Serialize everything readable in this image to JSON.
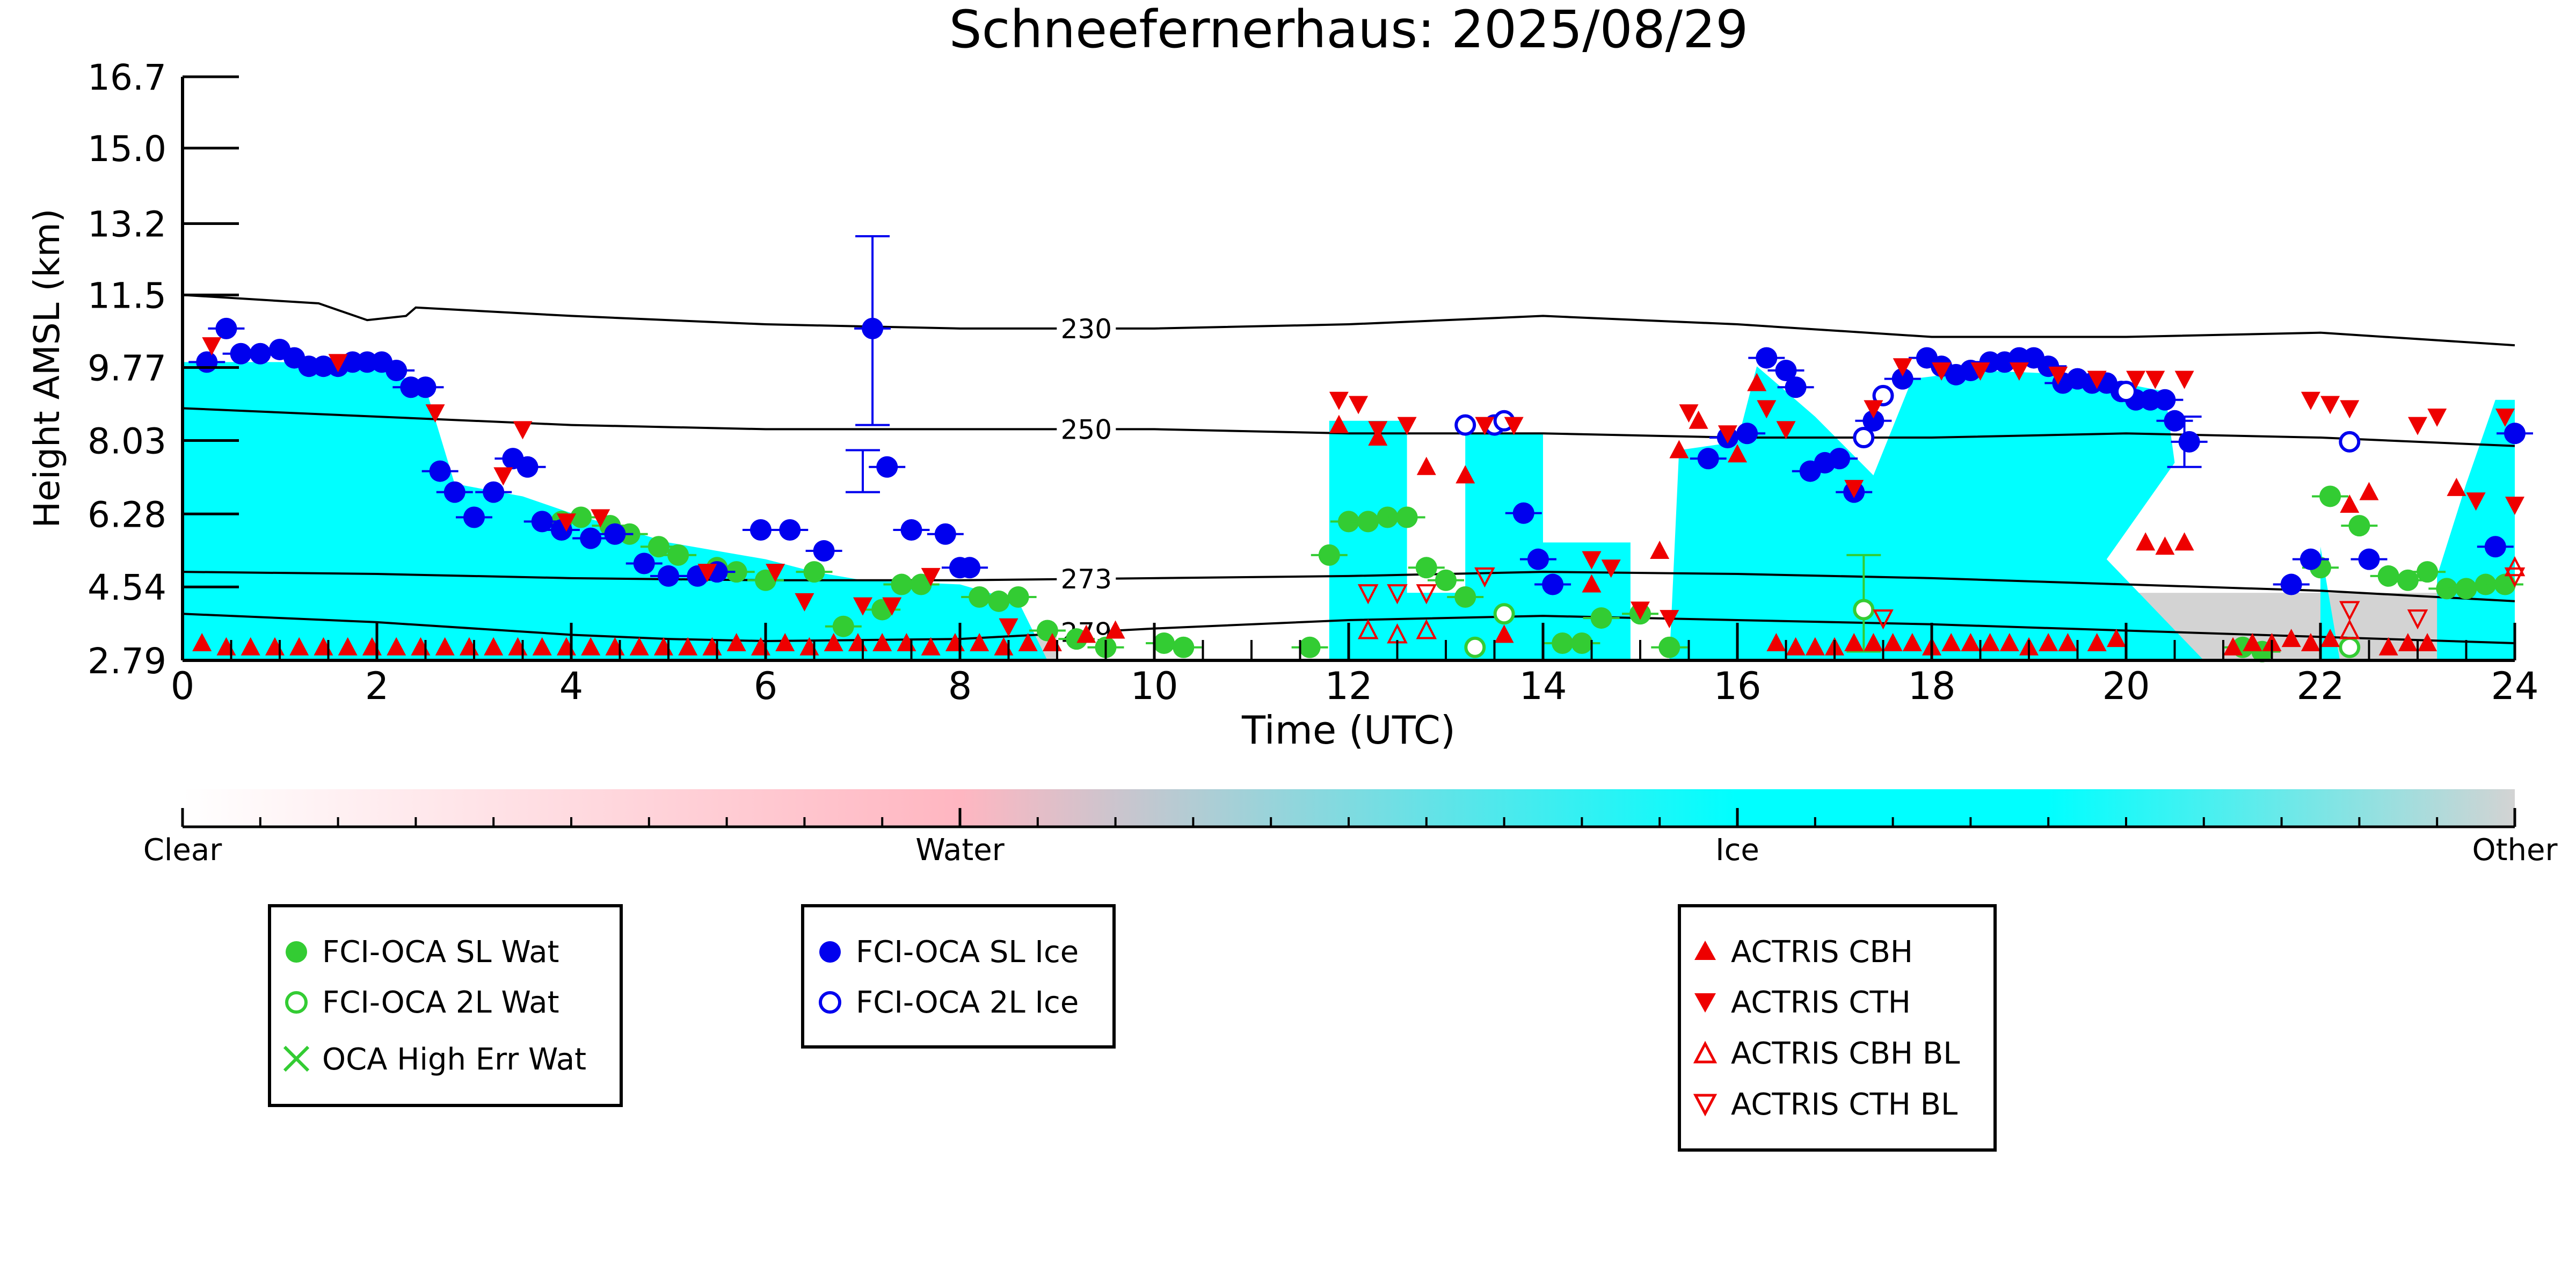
{
  "chart_data": {
    "type": "scatter",
    "title": "Schneefernerhaus: 2025/08/29",
    "xlabel": "Time (UTC)",
    "ylabel": "Height AMSL (km)",
    "xlim": [
      0,
      24
    ],
    "ylim": [
      2.79,
      16.7
    ],
    "x_ticks": [
      "0",
      "2",
      "4",
      "6",
      "8",
      "10",
      "12",
      "14",
      "16",
      "18",
      "20",
      "22",
      "24"
    ],
    "y_ticks": [
      "2.79",
      "4.54",
      "6.28",
      "8.03",
      "9.77",
      "11.5",
      "13.2",
      "15.0",
      "16.7"
    ],
    "grid": false,
    "colorbar": {
      "labels": [
        "Clear",
        "Water",
        "Ice",
        "Other"
      ],
      "colors": [
        "#ffffff",
        "#ffb6c1",
        "#00ffff",
        "#d3d3d3"
      ]
    },
    "background_classification": {
      "ice_top_km": [
        [
          0,
          9.9
        ],
        [
          1,
          9.9
        ],
        [
          2,
          9.8
        ],
        [
          2.5,
          9.3
        ],
        [
          2.8,
          7.0
        ],
        [
          3.5,
          6.7
        ],
        [
          4,
          6.3
        ],
        [
          5,
          5.6
        ],
        [
          6,
          5.2
        ],
        [
          6.5,
          4.9
        ],
        [
          7,
          4.7
        ],
        [
          8,
          4.6
        ],
        [
          8.6,
          4.2
        ],
        [
          8.9,
          2.79
        ],
        [
          11.8,
          2.79
        ],
        [
          11.8,
          8.5
        ],
        [
          12.6,
          8.5
        ],
        [
          12.6,
          4.4
        ],
        [
          13.2,
          4.4
        ],
        [
          13.2,
          8.2
        ],
        [
          14.0,
          8.2
        ],
        [
          14.0,
          5.6
        ],
        [
          14.9,
          5.6
        ],
        [
          14.9,
          2.79
        ],
        [
          15.3,
          2.79
        ],
        [
          15.4,
          7.8
        ],
        [
          16,
          8.0
        ],
        [
          16.2,
          9.8
        ],
        [
          16.8,
          8.6
        ],
        [
          17.4,
          7.2
        ],
        [
          17.8,
          9.5
        ],
        [
          18.5,
          9.7
        ],
        [
          19.5,
          9.6
        ],
        [
          20.4,
          9.2
        ],
        [
          20.5,
          7.5
        ],
        [
          19.8,
          5.2
        ],
        [
          20.8,
          2.79
        ],
        [
          22.0,
          2.79
        ],
        [
          22.0,
          5.5
        ],
        [
          22.2,
          2.79
        ],
        [
          23.2,
          2.79
        ],
        [
          23.2,
          4.8
        ],
        [
          23.5,
          7.0
        ],
        [
          23.8,
          9.0
        ],
        [
          24,
          9.0
        ]
      ],
      "other_regions": [
        [
          6.2,
          9.0,
          3.4
        ],
        [
          12.5,
          13.0,
          3.6
        ],
        [
          19.8,
          24,
          4.4
        ]
      ]
    },
    "contours": [
      {
        "label": "230",
        "label_x": 9.3,
        "x": [
          0,
          1.4,
          1.9,
          2.3,
          2.4,
          4,
          6,
          8,
          10,
          12,
          14,
          16,
          18,
          20,
          22,
          24
        ],
        "y": [
          11.5,
          11.3,
          10.9,
          11.0,
          11.2,
          11.0,
          10.8,
          10.7,
          10.7,
          10.8,
          11.0,
          10.8,
          10.5,
          10.5,
          10.6,
          10.3
        ]
      },
      {
        "label": "250",
        "label_x": 9.3,
        "x": [
          0,
          2,
          4,
          6,
          8,
          10,
          12,
          14,
          16,
          18,
          20,
          22,
          24
        ],
        "y": [
          8.8,
          8.6,
          8.4,
          8.3,
          8.3,
          8.3,
          8.2,
          8.2,
          8.1,
          8.1,
          8.2,
          8.1,
          7.9
        ]
      },
      {
        "label": "273",
        "label_x": 9.3,
        "x": [
          0,
          2,
          4,
          6,
          8,
          10,
          12,
          14,
          16,
          18,
          20,
          22,
          24
        ],
        "y": [
          4.9,
          4.85,
          4.75,
          4.7,
          4.7,
          4.75,
          4.8,
          4.9,
          4.85,
          4.75,
          4.6,
          4.45,
          4.2
        ]
      },
      {
        "label": "279",
        "label_x": 9.3,
        "x": [
          0,
          2,
          4,
          5,
          6,
          8,
          10,
          12,
          14,
          16,
          18,
          20,
          22,
          24
        ],
        "y": [
          3.9,
          3.7,
          3.4,
          3.3,
          3.25,
          3.3,
          3.55,
          3.75,
          3.85,
          3.75,
          3.65,
          3.5,
          3.35,
          3.2
        ]
      }
    ],
    "series": [
      {
        "name": "FCI-OCA SL Wat",
        "marker": "filled-circle",
        "color": "#33cc33",
        "x": [
          3.9,
          4.1,
          4.4,
          4.6,
          4.9,
          5.1,
          5.5,
          5.7,
          6.0,
          6.5,
          6.8,
          7.2,
          7.4,
          7.6,
          8.2,
          8.4,
          8.6,
          8.9,
          9.2,
          9.5,
          10.1,
          10.3,
          11.6,
          11.8,
          12.0,
          12.2,
          12.4,
          12.6,
          12.8,
          13.0,
          13.2,
          14.2,
          14.4,
          14.6,
          15.0,
          15.3,
          21.2,
          21.4,
          22.0,
          22.1,
          22.4,
          22.7,
          22.9,
          23.1,
          23.3,
          23.5,
          23.7,
          23.9
        ],
        "y": [
          6.1,
          6.2,
          6.0,
          5.8,
          5.5,
          5.3,
          5.0,
          4.9,
          4.7,
          4.9,
          3.6,
          4.0,
          4.6,
          4.6,
          4.3,
          4.2,
          4.3,
          3.5,
          3.3,
          3.1,
          3.2,
          3.1,
          3.1,
          5.3,
          6.1,
          6.1,
          6.2,
          6.2,
          5.0,
          4.7,
          4.3,
          3.2,
          3.2,
          3.8,
          3.9,
          3.1,
          3.1,
          3.0,
          5.0,
          6.7,
          6.0,
          4.8,
          4.7,
          4.9,
          4.5,
          4.5,
          4.6,
          4.6
        ]
      },
      {
        "name": "FCI-OCA 2L Wat",
        "marker": "open-circle",
        "color": "#33cc33",
        "x": [
          13.3,
          13.6,
          17.3,
          22.3
        ],
        "y": [
          3.1,
          3.9,
          4.0,
          3.1
        ]
      },
      {
        "name": "OCA High Err Wat",
        "marker": "cross",
        "color": "#33cc33",
        "x": [],
        "y": []
      },
      {
        "name": "FCI-OCA SL Ice",
        "marker": "filled-circle",
        "color": "#0000ee",
        "x": [
          0.25,
          0.45,
          0.6,
          0.8,
          1.0,
          1.15,
          1.3,
          1.45,
          1.6,
          1.75,
          1.9,
          2.05,
          2.2,
          2.35,
          2.5,
          2.65,
          2.8,
          3.0,
          3.2,
          3.4,
          3.55,
          3.7,
          3.9,
          4.2,
          4.45,
          4.75,
          5.0,
          5.3,
          5.5,
          5.95,
          6.25,
          6.6,
          7.1,
          7.25,
          7.5,
          7.85,
          8.0,
          8.1,
          13.8,
          13.95,
          14.1,
          15.7,
          15.9,
          16.1,
          16.3,
          16.5,
          16.6,
          16.75,
          16.9,
          17.05,
          17.2,
          17.4,
          17.7,
          17.95,
          18.1,
          18.25,
          18.4,
          18.6,
          18.75,
          18.9,
          19.05,
          19.2,
          19.35,
          19.5,
          19.65,
          19.8,
          19.95,
          20.1,
          20.25,
          20.4,
          20.5,
          20.65,
          21.7,
          21.9,
          22.5,
          23.8,
          24.0
        ],
        "y": [
          9.9,
          10.7,
          10.1,
          10.1,
          10.2,
          10.0,
          9.8,
          9.8,
          9.8,
          9.9,
          9.9,
          9.9,
          9.7,
          9.3,
          9.3,
          7.3,
          6.8,
          6.2,
          6.8,
          7.6,
          7.4,
          6.1,
          5.9,
          5.7,
          5.8,
          5.1,
          4.8,
          4.8,
          4.9,
          5.9,
          5.9,
          5.4,
          10.7,
          7.4,
          5.9,
          5.8,
          5.0,
          5.0,
          6.3,
          5.2,
          4.6,
          7.6,
          8.1,
          8.2,
          10.0,
          9.7,
          9.3,
          7.3,
          7.5,
          7.6,
          6.8,
          8.5,
          9.5,
          10.0,
          9.8,
          9.6,
          9.7,
          9.9,
          9.9,
          10.0,
          10.0,
          9.8,
          9.4,
          9.5,
          9.4,
          9.4,
          9.2,
          9.0,
          9.0,
          9.0,
          8.5,
          8.0,
          4.6,
          5.2,
          5.2,
          5.5,
          8.2
        ]
      },
      {
        "name": "FCI-OCA 2L Ice",
        "marker": "open-circle",
        "color": "#0000ee",
        "x": [
          13.2,
          13.5,
          13.6,
          17.3,
          17.5,
          20.0,
          22.3
        ],
        "y": [
          8.4,
          8.4,
          8.5,
          8.1,
          9.1,
          9.2,
          8.0
        ]
      },
      {
        "name": "ACTRIS CBH",
        "marker": "triangle-up",
        "color": "#ee0000",
        "x": [
          0.2,
          0.45,
          0.7,
          0.95,
          1.2,
          1.45,
          1.7,
          1.95,
          2.2,
          2.45,
          2.7,
          2.95,
          3.2,
          3.45,
          3.7,
          3.95,
          4.2,
          4.45,
          4.7,
          4.95,
          5.2,
          5.45,
          5.7,
          5.95,
          6.2,
          6.45,
          6.7,
          6.95,
          7.2,
          7.45,
          7.7,
          7.95,
          8.2,
          8.45,
          8.7,
          8.95,
          9.3,
          9.6,
          11.9,
          12.3,
          12.8,
          13.2,
          13.6,
          14.5,
          15.2,
          15.4,
          15.6,
          16.0,
          16.2,
          16.4,
          16.6,
          16.8,
          17.0,
          17.2,
          17.4,
          17.6,
          17.8,
          18.0,
          18.2,
          18.4,
          18.6,
          18.8,
          19.0,
          19.2,
          19.4,
          19.7,
          19.9,
          20.2,
          20.4,
          20.6,
          21.1,
          21.3,
          21.5,
          21.7,
          21.9,
          22.1,
          22.3,
          22.5,
          22.7,
          22.9,
          23.1,
          23.4
        ],
        "y": [
          3.2,
          3.1,
          3.1,
          3.1,
          3.1,
          3.1,
          3.1,
          3.1,
          3.1,
          3.1,
          3.1,
          3.1,
          3.1,
          3.1,
          3.1,
          3.1,
          3.1,
          3.1,
          3.1,
          3.1,
          3.1,
          3.1,
          3.2,
          3.1,
          3.2,
          3.1,
          3.2,
          3.2,
          3.2,
          3.2,
          3.1,
          3.2,
          3.2,
          3.1,
          3.2,
          3.2,
          3.4,
          3.5,
          8.4,
          8.1,
          7.4,
          7.2,
          3.4,
          4.6,
          5.4,
          7.8,
          8.5,
          7.7,
          9.4,
          3.2,
          3.1,
          3.1,
          3.1,
          3.2,
          3.2,
          3.2,
          3.2,
          3.1,
          3.2,
          3.2,
          3.2,
          3.2,
          3.1,
          3.2,
          3.2,
          3.2,
          3.3,
          5.6,
          5.5,
          5.6,
          3.1,
          3.2,
          3.2,
          3.3,
          3.2,
          3.3,
          6.5,
          6.8,
          3.1,
          3.2,
          3.2,
          6.9
        ]
      },
      {
        "name": "ACTRIS CTH",
        "marker": "triangle-down",
        "color": "#ee0000",
        "x": [
          0.3,
          1.6,
          2.6,
          3.5,
          3.3,
          3.95,
          4.3,
          5.4,
          6.1,
          6.4,
          7.0,
          7.3,
          7.7,
          8.5,
          11.9,
          12.1,
          12.3,
          12.6,
          13.4,
          13.7,
          14.5,
          14.7,
          15.0,
          15.3,
          15.5,
          15.9,
          16.3,
          16.5,
          17.2,
          17.4,
          17.7,
          18.1,
          18.5,
          18.9,
          19.3,
          19.7,
          20.1,
          20.3,
          20.6,
          21.9,
          22.1,
          22.3,
          23.0,
          23.2,
          23.6,
          23.9,
          24.0
        ],
        "y": [
          10.3,
          9.9,
          8.7,
          8.3,
          7.2,
          6.1,
          6.2,
          4.9,
          4.9,
          4.2,
          4.1,
          4.1,
          4.8,
          3.6,
          9.0,
          8.9,
          8.3,
          8.4,
          8.4,
          8.4,
          5.2,
          5.0,
          4.0,
          3.8,
          8.7,
          8.2,
          8.8,
          8.3,
          6.9,
          8.8,
          9.8,
          9.7,
          9.7,
          9.7,
          9.6,
          9.5,
          9.5,
          9.5,
          9.5,
          9.0,
          8.9,
          8.8,
          8.4,
          8.6,
          6.6,
          8.6,
          6.5
        ]
      },
      {
        "name": "ACTRIS CBH BL",
        "marker": "open-triangle-up",
        "color": "#ee0000",
        "x": [
          12.2,
          12.5,
          12.8,
          22.3,
          24.0
        ],
        "y": [
          3.5,
          3.4,
          3.5,
          3.5,
          5.0
        ]
      },
      {
        "name": "ACTRIS CTH BL",
        "marker": "open-triangle-down",
        "color": "#ee0000",
        "x": [
          12.2,
          12.5,
          12.8,
          13.4,
          17.5,
          22.3,
          23.0,
          24.0
        ],
        "y": [
          4.4,
          4.4,
          4.4,
          4.8,
          3.8,
          4.0,
          3.8,
          4.8
        ]
      }
    ],
    "error_bars": [
      {
        "x": 7.1,
        "y": 10.7,
        "ylo": 8.4,
        "yhi": 12.9,
        "color": "#0000ee"
      },
      {
        "x": 7.0,
        "y": 7.4,
        "ylo": 6.8,
        "yhi": 7.8,
        "color": "#0000ee"
      },
      {
        "x": 20.6,
        "y": 8.0,
        "ylo": 7.4,
        "yhi": 8.6,
        "color": "#0000ee"
      },
      {
        "x": 17.3,
        "y": 4.0,
        "ylo": 3.0,
        "yhi": 5.3,
        "color": "#33cc33"
      }
    ],
    "legends": [
      {
        "entries": [
          "FCI-OCA SL Wat",
          "FCI-OCA 2L Wat",
          "OCA High Err Wat"
        ]
      },
      {
        "entries": [
          "FCI-OCA SL Ice",
          "FCI-OCA 2L Ice"
        ]
      },
      {
        "entries": [
          "ACTRIS CBH",
          "ACTRIS CTH",
          "ACTRIS CBH BL",
          "ACTRIS CTH BL"
        ]
      }
    ]
  }
}
